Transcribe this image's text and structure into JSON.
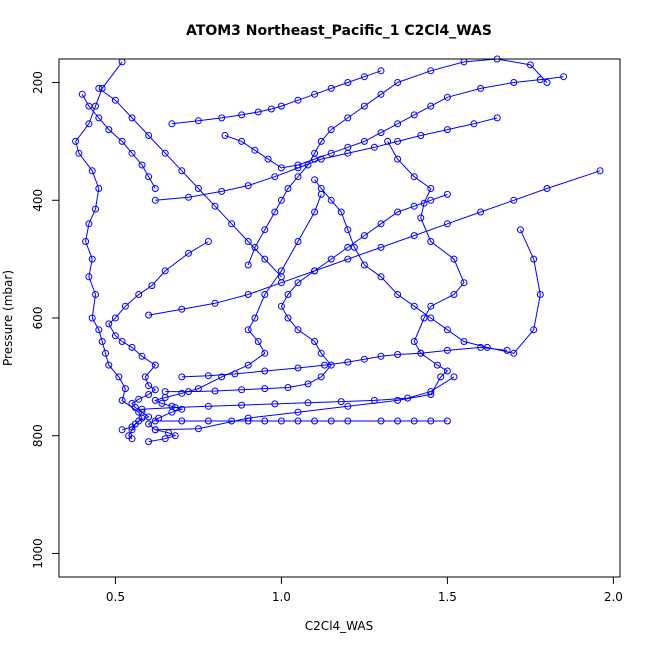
{
  "chart_data": {
    "type": "line",
    "title": "ATOM3 Northeast_Pacific_1 C2Cl4_WAS",
    "xlabel": "C2Cl4_WAS",
    "ylabel": "Pressure (mbar)",
    "xlim": [
      0.33,
      2.02
    ],
    "ylim": [
      1040,
      160
    ],
    "y_reversed": true,
    "xticks": [
      0.5,
      1.0,
      1.5,
      2.0
    ],
    "xtick_labels": [
      "0.5",
      "1.0",
      "1.5",
      "2.0"
    ],
    "yticks": [
      200,
      400,
      600,
      800,
      1000
    ],
    "ytick_labels": [
      "200",
      "400",
      "600",
      "800",
      "1000"
    ],
    "grid": false,
    "legend": "none",
    "color": "#0000ff",
    "series": [
      {
        "x": [
          0.55,
          0.54,
          0.55,
          0.56,
          0.58,
          0.57,
          0.52,
          0.53,
          0.51,
          0.48,
          0.47,
          0.46,
          0.45,
          0.43,
          0.44,
          0.42,
          0.43,
          0.41,
          0.42,
          0.44,
          0.45,
          0.43,
          0.39,
          0.38,
          0.42,
          0.44,
          0.46,
          0.52
        ],
        "y": [
          805,
          800,
          790,
          780,
          770,
          760,
          740,
          720,
          700,
          680,
          660,
          640,
          620,
          600,
          560,
          530,
          500,
          470,
          440,
          415,
          380,
          350,
          320,
          300,
          270,
          240,
          210,
          165
        ]
      },
      {
        "x": [
          0.52,
          0.55,
          0.57,
          0.6,
          0.58,
          0.56,
          0.55,
          0.57,
          0.6,
          0.62,
          0.6,
          0.59,
          0.62,
          0.58,
          0.55,
          0.52,
          0.5,
          0.48,
          0.5,
          0.53,
          0.57,
          0.61,
          0.65,
          0.72,
          0.78
        ],
        "y": [
          790,
          785,
          775,
          768,
          760,
          752,
          745,
          738,
          730,
          722,
          715,
          700,
          680,
          665,
          650,
          640,
          630,
          610,
          600,
          580,
          560,
          545,
          520,
          490,
          470
        ]
      },
      {
        "x": [
          0.6,
          0.65,
          0.68,
          0.66,
          0.62,
          0.6,
          0.63,
          0.67,
          0.7,
          0.67,
          0.64,
          0.62,
          0.65,
          0.7,
          0.75,
          0.82,
          0.9,
          0.95,
          0.93,
          0.9,
          0.92,
          0.95,
          1.0,
          1.05,
          1.1,
          1.12
        ],
        "y": [
          810,
          805,
          800,
          795,
          790,
          780,
          770,
          760,
          755,
          750,
          745,
          740,
          735,
          728,
          720,
          700,
          680,
          660,
          640,
          620,
          600,
          560,
          520,
          470,
          420,
          390
        ]
      },
      {
        "x": [
          0.62,
          0.7,
          0.78,
          0.85,
          0.9,
          0.95,
          1.0,
          1.05,
          1.1,
          1.15,
          1.2,
          1.3,
          1.35,
          1.4,
          1.45,
          1.5
        ],
        "y": [
          775,
          775,
          775,
          775,
          775,
          775,
          775,
          775,
          775,
          775,
          775,
          775,
          775,
          775,
          775,
          775
        ]
      },
      {
        "x": [
          0.62,
          0.75,
          0.9,
          1.05,
          1.2,
          1.35,
          1.45,
          1.48,
          1.5,
          1.47,
          1.42,
          1.4,
          1.43,
          1.45,
          1.52,
          1.55,
          1.52,
          1.45,
          1.42,
          1.43,
          1.45,
          1.4,
          1.35,
          1.32
        ],
        "y": [
          790,
          788,
          770,
          760,
          750,
          740,
          730,
          700,
          690,
          680,
          660,
          640,
          600,
          580,
          560,
          540,
          500,
          470,
          430,
          405,
          380,
          360,
          330,
          300
        ]
      },
      {
        "x": [
          0.65,
          0.72,
          0.8,
          0.88,
          0.95,
          1.02,
          1.08,
          1.12,
          1.15,
          1.12,
          1.1,
          1.05,
          1.02,
          1.0,
          1.02,
          1.05,
          1.1,
          1.15,
          1.2,
          1.25,
          1.3,
          1.35,
          1.4,
          1.45,
          1.5
        ],
        "y": [
          725,
          725,
          724,
          722,
          720,
          718,
          712,
          700,
          680,
          660,
          640,
          620,
          600,
          580,
          560,
          540,
          520,
          500,
          480,
          460,
          440,
          420,
          410,
          400,
          390
        ]
      },
      {
        "x": [
          0.7,
          0.78,
          0.86,
          0.95,
          1.05,
          1.13,
          1.2,
          1.25,
          1.3,
          1.35,
          1.42,
          1.5,
          1.6,
          1.68
        ],
        "y": [
          700,
          698,
          695,
          690,
          685,
          680,
          675,
          670,
          665,
          662,
          660,
          655,
          650,
          655
        ]
      },
      {
        "x": [
          0.58,
          0.68,
          0.78,
          0.88,
          0.98,
          1.08,
          1.18,
          1.28,
          1.38,
          1.45,
          1.52
        ],
        "y": [
          755,
          752,
          750,
          748,
          746,
          744,
          742,
          740,
          736,
          725,
          700
        ]
      },
      {
        "x": [
          0.6,
          0.7,
          0.8,
          0.9,
          1.0,
          1.1,
          1.2,
          1.3,
          1.4,
          1.5,
          1.6,
          1.7,
          1.8,
          1.96
        ],
        "y": [
          595,
          585,
          575,
          560,
          540,
          520,
          500,
          480,
          460,
          440,
          420,
          400,
          380,
          350
        ]
      },
      {
        "x": [
          0.62,
          0.72,
          0.82,
          0.9,
          0.98,
          1.05,
          1.12,
          1.2,
          1.28,
          1.35,
          1.42,
          1.5,
          1.58,
          1.65
        ],
        "y": [
          400,
          395,
          385,
          375,
          360,
          345,
          330,
          320,
          310,
          300,
          290,
          280,
          270,
          260
        ]
      },
      {
        "x": [
          0.67,
          0.75,
          0.82,
          0.88,
          0.93,
          0.97,
          1.0,
          1.05,
          1.1,
          1.15,
          1.2,
          1.25,
          1.3
        ],
        "y": [
          270,
          265,
          260,
          255,
          250,
          245,
          240,
          230,
          220,
          210,
          200,
          190,
          180
        ]
      },
      {
        "x": [
          0.83,
          0.88,
          0.92,
          0.96,
          1.0,
          1.05,
          1.1,
          1.15,
          1.2,
          1.25,
          1.3,
          1.35,
          1.4,
          1.45,
          1.5,
          1.6,
          1.7,
          1.78,
          1.85
        ],
        "y": [
          290,
          300,
          315,
          330,
          345,
          340,
          330,
          320,
          310,
          300,
          285,
          270,
          255,
          240,
          225,
          210,
          200,
          195,
          190
        ]
      },
      {
        "x": [
          1.1,
          1.12,
          1.15,
          1.18,
          1.2,
          1.22,
          1.25,
          1.3,
          1.35,
          1.4,
          1.45,
          1.5,
          1.55,
          1.62,
          1.7,
          1.76,
          1.78,
          1.76,
          1.72
        ],
        "y": [
          365,
          380,
          400,
          420,
          450,
          480,
          510,
          530,
          560,
          580,
          600,
          620,
          640,
          650,
          660,
          620,
          560,
          500,
          450
        ]
      },
      {
        "x": [
          0.9,
          0.92,
          0.95,
          0.98,
          1.0,
          1.02,
          1.05,
          1.08,
          1.1,
          1.12,
          1.15,
          1.2,
          1.25,
          1.3,
          1.35,
          1.45,
          1.55,
          1.65,
          1.75,
          1.8
        ],
        "y": [
          510,
          480,
          450,
          420,
          400,
          380,
          360,
          340,
          320,
          300,
          280,
          260,
          240,
          220,
          200,
          180,
          165,
          160,
          170,
          200
        ]
      },
      {
        "x": [
          0.45,
          0.5,
          0.55,
          0.6,
          0.65,
          0.7,
          0.75,
          0.8,
          0.85,
          0.9,
          0.95,
          1.0
        ],
        "y": [
          210,
          230,
          260,
          290,
          320,
          350,
          380,
          410,
          440,
          470,
          500,
          530
        ]
      },
      {
        "x": [
          0.4,
          0.42,
          0.45,
          0.48,
          0.52,
          0.55,
          0.58,
          0.6,
          0.62
        ],
        "y": [
          220,
          240,
          260,
          280,
          300,
          320,
          340,
          360,
          380
        ]
      }
    ]
  }
}
